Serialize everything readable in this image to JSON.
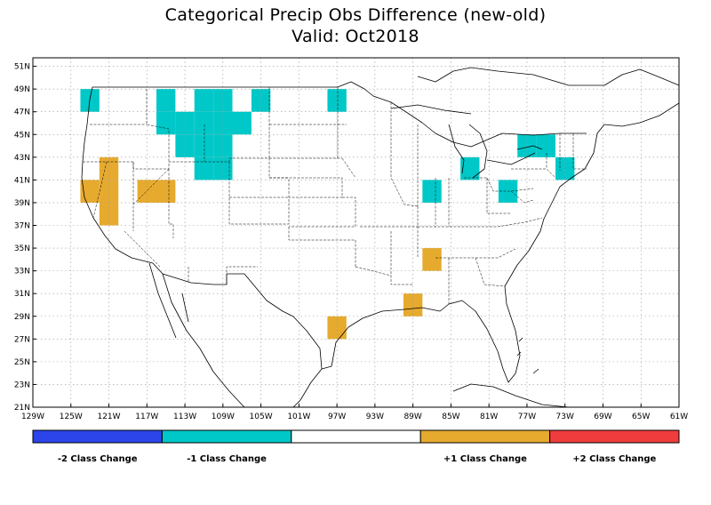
{
  "title": "Categorical Precip Obs Difference (new-old)",
  "subtitle": "Valid: Oct2018",
  "axes": {
    "lat_labels": [
      "51N",
      "49N",
      "47N",
      "45N",
      "43N",
      "41N",
      "39N",
      "37N",
      "35N",
      "33N",
      "31N",
      "29N",
      "27N",
      "25N",
      "23N",
      "21N"
    ],
    "lon_labels": [
      "129W",
      "125W",
      "121W",
      "117W",
      "113W",
      "109W",
      "105W",
      "101W",
      "97W",
      "93W",
      "89W",
      "85W",
      "81W",
      "77W",
      "73W",
      "69W",
      "65W",
      "61W"
    ]
  },
  "colors": {
    "minus2": "#2b45ea",
    "minus1": "#00c8c8",
    "zero": "#ffffff",
    "plus1": "#e6aa2e",
    "plus2": "#f03c3c"
  },
  "legend": [
    {
      "label": "-2 Class Change",
      "key": "minus2"
    },
    {
      "label": "-1 Class Change",
      "key": "minus1"
    },
    {
      "label": "",
      "key": "zero"
    },
    {
      "label": "+1 Class Change",
      "key": "plus1"
    },
    {
      "label": "+2 Class Change",
      "key": "plus2"
    }
  ],
  "cells": [
    {
      "lon": -123,
      "lat": 48,
      "v": -1
    },
    {
      "lon": -115,
      "lat": 48,
      "v": -1
    },
    {
      "lon": -111,
      "lat": 48,
      "v": -1
    },
    {
      "lon": -109,
      "lat": 48,
      "v": -1
    },
    {
      "lon": -105,
      "lat": 48,
      "v": -1
    },
    {
      "lon": -97,
      "lat": 48,
      "v": -1
    },
    {
      "lon": -115,
      "lat": 46,
      "v": -1
    },
    {
      "lon": -113,
      "lat": 46,
      "v": -1
    },
    {
      "lon": -111,
      "lat": 46,
      "v": -1
    },
    {
      "lon": -109,
      "lat": 46,
      "v": -1
    },
    {
      "lon": -107,
      "lat": 46,
      "v": -1
    },
    {
      "lon": -113,
      "lat": 44,
      "v": -1
    },
    {
      "lon": -111,
      "lat": 44,
      "v": -1
    },
    {
      "lon": -109,
      "lat": 44,
      "v": -1
    },
    {
      "lon": -111,
      "lat": 42,
      "v": -1
    },
    {
      "lon": -109,
      "lat": 42,
      "v": -1
    },
    {
      "lon": -77,
      "lat": 44,
      "v": -1
    },
    {
      "lon": -75,
      "lat": 44,
      "v": -1
    },
    {
      "lon": -83,
      "lat": 42,
      "v": -1
    },
    {
      "lon": -73,
      "lat": 42,
      "v": -1
    },
    {
      "lon": -87,
      "lat": 40,
      "v": -1
    },
    {
      "lon": -79,
      "lat": 40,
      "v": -1
    },
    {
      "lon": -121,
      "lat": 42,
      "v": 1
    },
    {
      "lon": -123,
      "lat": 40,
      "v": 1
    },
    {
      "lon": -121,
      "lat": 40,
      "v": 1
    },
    {
      "lon": -117,
      "lat": 40,
      "v": 1
    },
    {
      "lon": -115,
      "lat": 40,
      "v": 1
    },
    {
      "lon": -121,
      "lat": 38,
      "v": 1
    },
    {
      "lon": -87,
      "lat": 34,
      "v": 1
    },
    {
      "lon": -89,
      "lat": 30,
      "v": 1
    },
    {
      "lon": -97,
      "lat": 28,
      "v": 1
    }
  ]
}
